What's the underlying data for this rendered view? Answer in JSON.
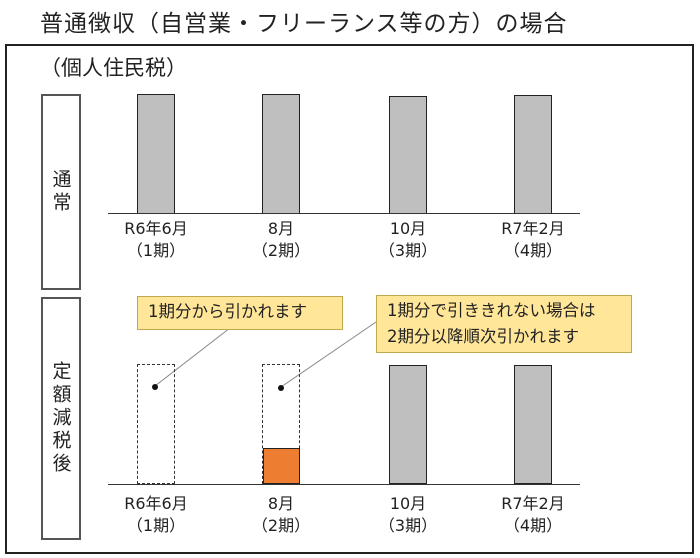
{
  "title": "普通徴収（自営業・フリーランス等の方）の場合",
  "subtitle": "（個人住民税）",
  "sections": {
    "normal": {
      "label": "通常"
    },
    "reduction": {
      "label": "定額減税後"
    }
  },
  "periods": [
    {
      "month": "R6年6月",
      "term": "（1期）"
    },
    {
      "month": "8月",
      "term": "（2期）"
    },
    {
      "month": "10月",
      "term": "（3期）"
    },
    {
      "month": "R7年2月",
      "term": "（4期）"
    }
  ],
  "callouts": {
    "first": "1期分から引かれます",
    "second_line1": "1期分で引ききれない場合は",
    "second_line2": "2期分以降順次引かれます"
  },
  "colors": {
    "bar": "#bfbfbf",
    "remaining_payment": "#ed7d31",
    "callout": "#ffe699"
  }
}
